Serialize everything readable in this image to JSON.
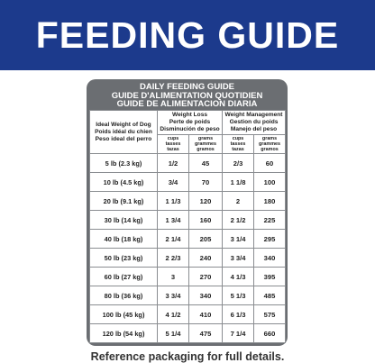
{
  "banner": {
    "title": "FEEDING GUIDE"
  },
  "card": {
    "header_lines": [
      "DAILY FEEDING GUIDE",
      "GUIDE D'ALIMENTATION QUOTIDIEN",
      "GUIDE DE ALIMENTACION DIARIA"
    ],
    "col_weight": [
      "Ideal Weight of Dog",
      "Poids idéal du chien",
      "Peso ideal del perro"
    ],
    "col_weight_loss": [
      "Weight Loss",
      "Perte de poids",
      "Disminución de peso"
    ],
    "col_weight_mgmt": [
      "Weight Management",
      "Gestion du poids",
      "Manejo del peso"
    ],
    "unit_cups": [
      "cups",
      "tasses",
      "tazas"
    ],
    "unit_grams": [
      "grams",
      "grammes",
      "gramos"
    ],
    "rows": [
      {
        "weight": "5 lb (2.3 kg)",
        "loss_cups": "1/2",
        "loss_grams": "45",
        "mgmt_cups": "2/3",
        "mgmt_grams": "60"
      },
      {
        "weight": "10 lb (4.5 kg)",
        "loss_cups": "3/4",
        "loss_grams": "70",
        "mgmt_cups": "1 1/8",
        "mgmt_grams": "100"
      },
      {
        "weight": "20 lb (9.1 kg)",
        "loss_cups": "1 1/3",
        "loss_grams": "120",
        "mgmt_cups": "2",
        "mgmt_grams": "180"
      },
      {
        "weight": "30 lb (14 kg)",
        "loss_cups": "1 3/4",
        "loss_grams": "160",
        "mgmt_cups": "2 1/2",
        "mgmt_grams": "225"
      },
      {
        "weight": "40 lb (18 kg)",
        "loss_cups": "2 1/4",
        "loss_grams": "205",
        "mgmt_cups": "3 1/4",
        "mgmt_grams": "295"
      },
      {
        "weight": "50 lb (23 kg)",
        "loss_cups": "2 2/3",
        "loss_grams": "240",
        "mgmt_cups": "3 3/4",
        "mgmt_grams": "340"
      },
      {
        "weight": "60 lb (27 kg)",
        "loss_cups": "3",
        "loss_grams": "270",
        "mgmt_cups": "4 1/3",
        "mgmt_grams": "395"
      },
      {
        "weight": "80 lb (36 kg)",
        "loss_cups": "3 3/4",
        "loss_grams": "340",
        "mgmt_cups": "5 1/3",
        "mgmt_grams": "485"
      },
      {
        "weight": "100 lb (45 kg)",
        "loss_cups": "4 1/2",
        "loss_grams": "410",
        "mgmt_cups": "6 1/3",
        "mgmt_grams": "575"
      },
      {
        "weight": "120 lb (54 kg)",
        "loss_cups": "5 1/4",
        "loss_grams": "475",
        "mgmt_cups": "7 1/4",
        "mgmt_grams": "660"
      }
    ]
  },
  "footer": {
    "text": "Reference packaging for full details."
  },
  "colors": {
    "banner": "#1c3a8c",
    "card": "#6b6e72",
    "text": "#222222"
  }
}
